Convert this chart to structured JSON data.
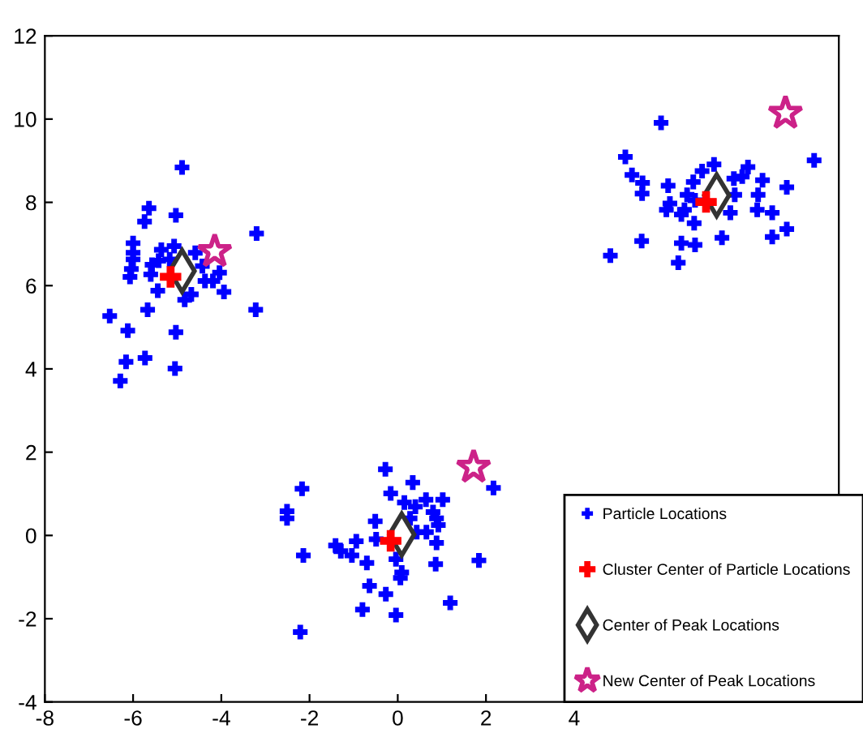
{
  "chart_data": {
    "type": "scatter",
    "xlim": [
      -8,
      10
    ],
    "ylim": [
      -4,
      12
    ],
    "xticks": [
      -8,
      -6,
      -4,
      -2,
      0,
      2,
      4
    ],
    "yticks": [
      -4,
      -2,
      0,
      2,
      4,
      6,
      8,
      10,
      12
    ],
    "grid": false,
    "legend": "bottom right",
    "series": [
      {
        "name": "Particle Locations",
        "color": "#0000ff",
        "marker": "cross",
        "x": [
          -4.89,
          -5.64,
          -5.74,
          -5.03,
          -3.2,
          -6.0,
          -6.0,
          -6.0,
          -6.04,
          -6.07,
          -5.57,
          -5.6,
          -5.36,
          -5.42,
          -5.17,
          -5.07,
          -4.59,
          -4.43,
          -4.37,
          -4.19,
          -4.04,
          -3.94,
          -4.68,
          -4.83,
          -5.44,
          -3.22,
          -6.53,
          -5.67,
          -6.12,
          -5.03,
          -6.16,
          -5.73,
          -5.05,
          -6.29,
          -0.28,
          0.34,
          -0.16,
          -2.17,
          2.17,
          -2.51,
          -2.51,
          0.15,
          0.4,
          0.64,
          1.02,
          0.8,
          0.88,
          0.92,
          0.28,
          0.43,
          0.65,
          0.88,
          -0.51,
          -0.49,
          -0.94,
          -1.41,
          -1.29,
          -1.04,
          -2.14,
          -0.7,
          -0.04,
          0.09,
          0.06,
          0.86,
          1.84,
          -0.64,
          -0.27,
          -0.8,
          -0.04,
          1.19,
          -2.21,
          5.97,
          5.16,
          5.31,
          5.55,
          5.54,
          4.82,
          5.53,
          6.13,
          6.17,
          6.09,
          6.56,
          6.5,
          6.43,
          6.7,
          6.74,
          6.9,
          6.72,
          6.43,
          6.74,
          6.36,
          7.17,
          7.35,
          7.54,
          7.62,
          7.64,
          7.81,
          7.94,
          8.27,
          8.17,
          8.15,
          8.49,
          8.49,
          8.82,
          8.82,
          9.44
        ],
        "values": [
          8.84,
          7.86,
          7.54,
          7.69,
          7.25,
          7.02,
          6.79,
          6.63,
          6.4,
          6.21,
          6.5,
          6.27,
          6.86,
          6.6,
          6.63,
          6.95,
          6.79,
          6.47,
          6.11,
          6.11,
          6.31,
          5.85,
          5.79,
          5.66,
          5.88,
          5.42,
          5.27,
          5.42,
          4.92,
          4.88,
          4.17,
          4.26,
          4.01,
          3.71,
          1.59,
          1.27,
          1.01,
          1.12,
          1.14,
          0.58,
          0.41,
          0.79,
          0.69,
          0.86,
          0.86,
          0.56,
          0.41,
          0.25,
          0.41,
          0.08,
          0.08,
          -0.18,
          0.34,
          -0.09,
          -0.14,
          -0.24,
          -0.38,
          -0.48,
          -0.48,
          -0.66,
          -0.57,
          -0.89,
          -1.02,
          -0.69,
          -0.6,
          -1.21,
          -1.41,
          -1.78,
          -1.91,
          -1.62,
          -2.32,
          9.91,
          9.09,
          8.66,
          8.47,
          8.21,
          6.72,
          7.07,
          8.4,
          7.97,
          7.82,
          8.18,
          7.82,
          7.71,
          8.49,
          8.05,
          8.75,
          7.5,
          7.02,
          6.98,
          6.55,
          8.91,
          7.15,
          7.75,
          8.57,
          8.18,
          8.62,
          8.85,
          8.53,
          8.18,
          7.82,
          7.75,
          7.17,
          8.36,
          7.36,
          9.01
        ]
      },
      {
        "name": "Cluster Center of Particle Locations",
        "color": "#ff0000",
        "marker": "cross",
        "x": [
          -5.15,
          -0.16,
          6.99
        ],
        "values": [
          6.21,
          -0.13,
          8.01
        ]
      },
      {
        "name": "Center of Peak Locations",
        "color": "#333333",
        "marker": "diamond",
        "x": [
          -4.89,
          0.09,
          7.23
        ],
        "values": [
          6.35,
          0.02,
          8.17
        ]
      },
      {
        "name": "New Center of Peak Locations",
        "color": "#cc2288",
        "marker": "star",
        "x": [
          -4.15,
          1.72,
          8.79
        ],
        "values": [
          6.82,
          1.64,
          10.14
        ]
      }
    ]
  }
}
